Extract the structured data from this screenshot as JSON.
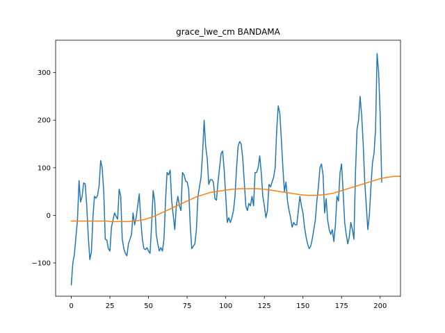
{
  "chart_data": {
    "type": "line",
    "title": "grace_lwe_cm BANDAMA",
    "xlabel": "",
    "ylabel": "",
    "xlim": [
      -10.15,
      213.15
    ],
    "ylim": [
      -170,
      368
    ],
    "xticks": [
      0,
      25,
      50,
      75,
      100,
      125,
      150,
      175,
      200
    ],
    "yticks": [
      -100,
      0,
      100,
      200,
      300
    ],
    "grid": false,
    "legend": "none",
    "colors": {
      "series1": "#1f77b4",
      "series2": "#ff7f0e"
    },
    "series": [
      {
        "values": [
          -146,
          -100,
          -82,
          -45,
          -10,
          73,
          28,
          40,
          68,
          66,
          20,
          -45,
          -93,
          -77,
          -5,
          40,
          36,
          42,
          62,
          115,
          100,
          50,
          -50,
          -52,
          -70,
          -75,
          -25,
          -10,
          5,
          -2,
          -8,
          55,
          40,
          -50,
          -70,
          -80,
          -85,
          -60,
          -50,
          -40,
          5,
          -20,
          -5,
          20,
          45,
          -10,
          -50,
          -70,
          -72,
          -68,
          -75,
          -80,
          -20,
          52,
          30,
          -40,
          -60,
          -75,
          -68,
          -75,
          -50,
          30,
          90,
          85,
          95,
          30,
          0,
          -30,
          20,
          40,
          20,
          10,
          90,
          85,
          72,
          70,
          55,
          -20,
          -70,
          -65,
          -60,
          -30,
          40,
          60,
          80,
          130,
          200,
          145,
          120,
          65,
          75,
          75,
          70,
          35,
          32,
          70,
          100,
          130,
          135,
          95,
          40,
          -15,
          -5,
          -15,
          -5,
          10,
          40,
          100,
          145,
          155,
          150,
          120,
          70,
          20,
          10,
          25,
          20,
          40,
          20,
          90,
          90,
          100,
          125,
          90,
          40,
          20,
          -5,
          10,
          65,
          60,
          70,
          80,
          100,
          180,
          230,
          215,
          160,
          100,
          50,
          70,
          30,
          10,
          -5,
          -25,
          -15,
          -20,
          -20,
          10,
          40,
          20,
          5,
          -25,
          -45,
          -60,
          -70,
          -65,
          -50,
          -30,
          -10,
          30,
          60,
          100,
          108,
          85,
          5,
          35,
          -10,
          -30,
          -40,
          -30,
          -55,
          -20,
          40,
          30,
          90,
          108,
          50,
          -15,
          -40,
          -60,
          -45,
          -15,
          -30,
          -50,
          90,
          180,
          200,
          250,
          210,
          150,
          70,
          20,
          -30,
          0,
          60,
          110,
          130,
          180,
          340,
          300,
          210,
          70
        ],
        "start_x": 0
      },
      {
        "values": [
          -12,
          -12,
          -12,
          -12,
          -12,
          -12,
          -12,
          -12,
          -12,
          -12,
          -12,
          -12,
          -12,
          -12,
          -12,
          -12,
          -12,
          -12,
          -12,
          -12,
          -12,
          -12,
          -12,
          -12,
          -12.5,
          -13,
          -13,
          -13,
          -13,
          -13,
          -13,
          -13,
          -13,
          -13,
          -13,
          -13,
          -13,
          -13,
          -13,
          -12.5,
          -12,
          -12,
          -11.5,
          -11,
          -10.5,
          -10,
          -9.5,
          -9,
          -8,
          -7,
          -6,
          -5,
          -4,
          -3,
          -1.5,
          0,
          1.5,
          3,
          4.5,
          6,
          7.5,
          9,
          10.5,
          12,
          13.5,
          15,
          16.5,
          18,
          19.5,
          21,
          22.5,
          24,
          25.5,
          27,
          28.5,
          30,
          31.5,
          33,
          34.5,
          36,
          37.5,
          39,
          40,
          41,
          42,
          43,
          44,
          45,
          46,
          47,
          48,
          48.5,
          49,
          49.5,
          50,
          50.5,
          51,
          51.5,
          52,
          52.5,
          53,
          53.5,
          54,
          54.5,
          55,
          55,
          55.5,
          55.5,
          56,
          56,
          56,
          56,
          56,
          56,
          56,
          56,
          56,
          56,
          56,
          56,
          56,
          56,
          55.5,
          55.5,
          55,
          55,
          54.5,
          54,
          53.5,
          53,
          52.5,
          52,
          51.5,
          51,
          50.5,
          50,
          49.5,
          49,
          48.5,
          48,
          47.5,
          47,
          46.5,
          46,
          45.5,
          45,
          44.5,
          44,
          43.5,
          43,
          43,
          42.5,
          42.5,
          42,
          42,
          42,
          42,
          42,
          42,
          42,
          42.5,
          42.5,
          43,
          43,
          43.5,
          44,
          44.5,
          45,
          45.5,
          46,
          47,
          48,
          49,
          50,
          51,
          52,
          53,
          54,
          55,
          56,
          57,
          58,
          59,
          60,
          61,
          62,
          63,
          64,
          65,
          66,
          67,
          68,
          69,
          70,
          71,
          72,
          73,
          74,
          75,
          76,
          77,
          78,
          78.5,
          79,
          79.5,
          80,
          80.5,
          81,
          81.5,
          82,
          82,
          82,
          82,
          82
        ],
        "start_x": 0
      }
    ]
  }
}
